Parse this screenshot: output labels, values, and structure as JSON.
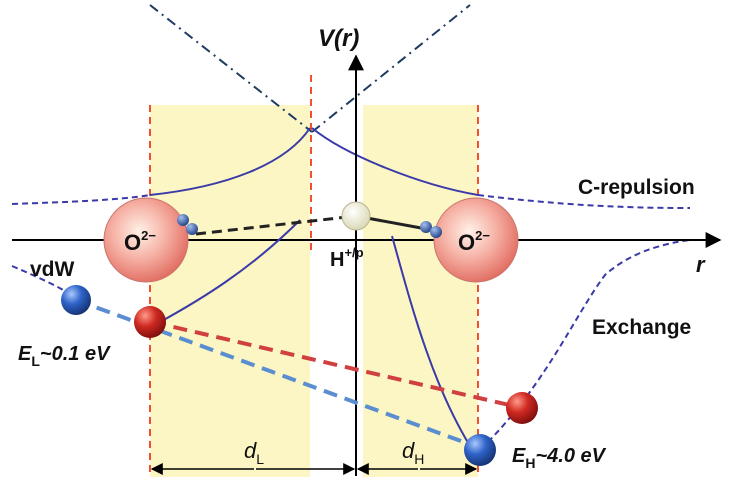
{
  "labels": {
    "axis_y": "V(r)",
    "axis_x": "r",
    "c_repulsion": "C-repulsion",
    "exchange": "Exchange",
    "vdw": "vdW",
    "oxygen_left_base": "O",
    "oxygen_right_base": "O",
    "oxygen_charge": "2−",
    "proton_base": "H",
    "proton_sup": "+/p",
    "energy_low_letter": "E",
    "energy_low_sub": "L",
    "energy_low_value": "~0.1 eV",
    "energy_high_letter": "E",
    "energy_high_sub": "H",
    "energy_high_value": "~4.0 eV",
    "dist_low_letter": "d",
    "dist_low_sub": "L",
    "dist_high_letter": "d",
    "dist_high_sub": "H"
  },
  "colors": {
    "region_fill": "#fbf6c4",
    "boundary_dash": "#f05030",
    "potential_curve": "#3a3aa8",
    "asymptote": "#1f3a5f",
    "bond_dash_red": "#d04040",
    "bond_dash_blue": "#5a8ed0",
    "oxygen": "#f08f86",
    "proton": "#f2f2d6",
    "ball_red": "#c8201f",
    "ball_blue": "#2f63c8"
  }
}
